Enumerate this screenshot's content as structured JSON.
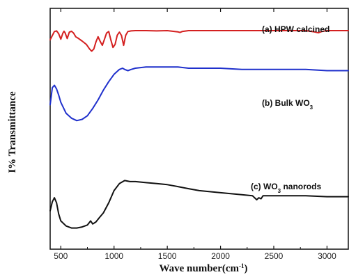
{
  "chart_data": {
    "type": "line",
    "xlabel": "Wave number(cm",
    "xlabel_sup": "-1",
    "xlabel_end": ")",
    "ylabel": "I% Transmittance",
    "xlim": [
      400,
      3200
    ],
    "xticks": [
      500,
      1000,
      1500,
      2000,
      2500,
      3000
    ],
    "yticks_shown": false,
    "grid": false,
    "series": [
      {
        "id": "a",
        "label_main": "(a) HPW calcined",
        "label_sub": "",
        "label_tail": "",
        "color": "#d42020",
        "x": [
          400,
          420,
          440,
          460,
          480,
          500,
          520,
          530,
          540,
          560,
          580,
          600,
          620,
          640,
          660,
          700,
          740,
          770,
          790,
          810,
          830,
          850,
          870,
          890,
          910,
          930,
          950,
          970,
          990,
          1010,
          1030,
          1050,
          1070,
          1090,
          1110,
          1130,
          1160,
          1200,
          1300,
          1400,
          1500,
          1600,
          1620,
          1640,
          1700,
          1800,
          2000,
          2200,
          2400,
          2600,
          2800,
          2880,
          2920,
          2950,
          3000,
          3200
        ],
        "y": [
          0.7,
          0.84,
          0.97,
          0.99,
          0.9,
          0.72,
          0.92,
          0.98,
          0.93,
          0.74,
          0.95,
          0.98,
          0.92,
          0.8,
          0.76,
          0.66,
          0.55,
          0.4,
          0.33,
          0.4,
          0.63,
          0.8,
          0.65,
          0.52,
          0.72,
          0.92,
          0.97,
          0.7,
          0.45,
          0.55,
          0.85,
          0.95,
          0.84,
          0.52,
          0.85,
          0.97,
          0.99,
          1.0,
          1.0,
          0.99,
          1.0,
          0.96,
          0.94,
          0.97,
          1.0,
          1.0,
          1.0,
          1.0,
          1.0,
          1.0,
          1.0,
          0.96,
          0.93,
          0.97,
          1.0,
          1.0
        ]
      },
      {
        "id": "b",
        "label_main": "(b) Bulk WO",
        "label_sub": "3",
        "label_tail": "",
        "color": "#1f30cc",
        "x": [
          400,
          420,
          440,
          460,
          480,
          500,
          550,
          600,
          650,
          700,
          750,
          800,
          850,
          900,
          950,
          1000,
          1050,
          1080,
          1100,
          1130,
          1160,
          1200,
          1300,
          1400,
          1500,
          1600,
          1700,
          1800,
          1900,
          2000,
          2200,
          2400,
          2600,
          2800,
          3000,
          3200
        ],
        "y": [
          0.54,
          0.68,
          0.7,
          0.67,
          0.62,
          0.56,
          0.47,
          0.43,
          0.41,
          0.42,
          0.45,
          0.51,
          0.58,
          0.66,
          0.73,
          0.79,
          0.83,
          0.84,
          0.83,
          0.82,
          0.83,
          0.84,
          0.85,
          0.85,
          0.85,
          0.85,
          0.84,
          0.84,
          0.84,
          0.84,
          0.83,
          0.83,
          0.83,
          0.83,
          0.82,
          0.82
        ]
      },
      {
        "id": "c",
        "label_main": "(c) WO",
        "label_sub": "3",
        "label_tail": " nanorods",
        "color": "#111111",
        "x": [
          400,
          420,
          440,
          460,
          480,
          500,
          550,
          600,
          650,
          700,
          750,
          780,
          800,
          830,
          860,
          900,
          950,
          1000,
          1050,
          1100,
          1150,
          1200,
          1300,
          1400,
          1500,
          1600,
          1700,
          1800,
          1900,
          2000,
          2200,
          2300,
          2340,
          2360,
          2380,
          2400,
          2600,
          2800,
          3000,
          3200
        ],
        "y": [
          0.29,
          0.38,
          0.42,
          0.37,
          0.26,
          0.19,
          0.14,
          0.12,
          0.12,
          0.13,
          0.15,
          0.19,
          0.16,
          0.18,
          0.22,
          0.27,
          0.37,
          0.49,
          0.56,
          0.59,
          0.58,
          0.58,
          0.57,
          0.56,
          0.55,
          0.53,
          0.51,
          0.49,
          0.48,
          0.47,
          0.45,
          0.44,
          0.4,
          0.42,
          0.41,
          0.44,
          0.44,
          0.44,
          0.43,
          0.43
        ]
      }
    ]
  }
}
